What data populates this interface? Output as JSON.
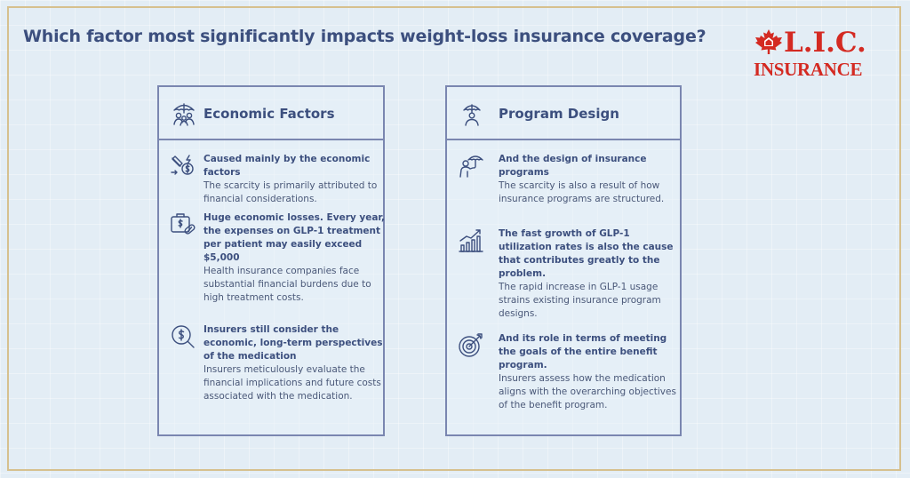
{
  "title": "Which factor most significantly impacts weight-loss insurance coverage?",
  "logo": {
    "line1": "L.I.C.",
    "line2": "INSURANCE",
    "color": "#d42a22"
  },
  "left_card": {
    "title": "Economic Factors",
    "items": [
      {
        "icon": "money-hand-icon",
        "head": "Caused mainly by the economic factors",
        "body": "The scarcity is primarily attributed to financial considerations."
      },
      {
        "icon": "medical-bag-pill-icon",
        "head": "Huge economic losses. Every year, the expenses on GLP-1 treatment per patient may easily exceed $5,000",
        "body": "Health insurance companies face substantial financial burdens due to high treatment costs."
      },
      {
        "icon": "dollar-magnifier-icon",
        "head": "Insurers still consider the economic, long-term perspectives of the medication",
        "body": "Insurers meticulously evaluate the financial implications and future costs associated with the medication."
      }
    ]
  },
  "right_card": {
    "title": "Program Design",
    "items": [
      {
        "icon": "person-umbrella-icon",
        "head": "And the design of insurance programs",
        "body": "The scarcity is also a result of how insurance programs are structured."
      },
      {
        "icon": "growth-chart-icon",
        "head": "The fast growth of GLP-1 utilization rates is also the cause that contributes greatly to the problem.",
        "body": "The rapid increase in GLP-1 usage strains existing insurance program designs."
      },
      {
        "icon": "target-arrow-icon",
        "head": "And its role in terms of meeting the goals of the entire benefit program.",
        "body": "Insurers assess how the medication aligns with the overarching objectives of the benefit program."
      }
    ]
  }
}
